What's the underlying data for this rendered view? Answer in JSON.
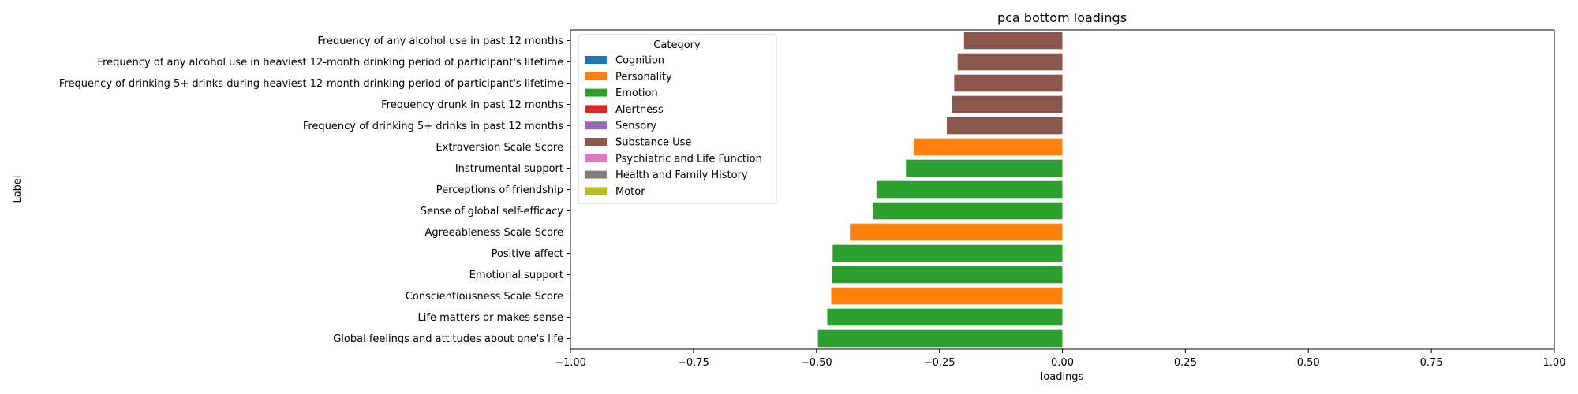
{
  "chart_data": {
    "type": "bar",
    "orientation": "horizontal",
    "title": "pca bottom loadings",
    "xlabel": "loadings",
    "ylabel": "Label",
    "xlim": [
      -1.0,
      1.0
    ],
    "xticks": [
      -1.0,
      -0.75,
      -0.5,
      -0.25,
      0.0,
      0.25,
      0.5,
      0.75,
      1.0
    ],
    "xtick_labels": [
      "−1.00",
      "−0.75",
      "−0.50",
      "−0.25",
      "0.00",
      "0.25",
      "0.50",
      "0.75",
      "1.00"
    ],
    "grid": false,
    "legend": {
      "title": "Category",
      "placement": "top-left",
      "entries": [
        {
          "name": "Cognition",
          "color": "#1f77b4"
        },
        {
          "name": "Personality",
          "color": "#ff7f0e"
        },
        {
          "name": "Emotion",
          "color": "#2ca02c"
        },
        {
          "name": "Alertness",
          "color": "#d62728"
        },
        {
          "name": "Sensory",
          "color": "#9467bd"
        },
        {
          "name": "Substance Use",
          "color": "#8c564b"
        },
        {
          "name": "Psychiatric and Life Function",
          "color": "#e377c2"
        },
        {
          "name": "Health and Family History",
          "color": "#7f7f7f"
        },
        {
          "name": "Motor",
          "color": "#bcbd22"
        }
      ]
    },
    "bars": [
      {
        "label": "Frequency of any alcohol use in past 12 months",
        "value": -0.2,
        "category": "Substance Use"
      },
      {
        "label": "Frequency of any alcohol use in heaviest 12-month drinking period of participant's lifetime",
        "value": -0.213,
        "category": "Substance Use"
      },
      {
        "label": "Frequency of drinking 5+ drinks during heaviest 12-month drinking period of participant's lifetime",
        "value": -0.22,
        "category": "Substance Use"
      },
      {
        "label": "Frequency drunk in past 12 months",
        "value": -0.224,
        "category": "Substance Use"
      },
      {
        "label": "Frequency of drinking 5+ drinks in past 12 months",
        "value": -0.235,
        "category": "Substance Use"
      },
      {
        "label": "Extraversion Scale Score",
        "value": -0.302,
        "category": "Personality"
      },
      {
        "label": "Instrumental support",
        "value": -0.318,
        "category": "Emotion"
      },
      {
        "label": "Perceptions of friendship",
        "value": -0.378,
        "category": "Emotion"
      },
      {
        "label": "Sense of global self-efficacy",
        "value": -0.385,
        "category": "Emotion"
      },
      {
        "label": "Agreeableness Scale Score",
        "value": -0.432,
        "category": "Personality"
      },
      {
        "label": "Positive affect",
        "value": -0.467,
        "category": "Emotion"
      },
      {
        "label": "Emotional support",
        "value": -0.468,
        "category": "Emotion"
      },
      {
        "label": "Conscientiousness Scale Score",
        "value": -0.47,
        "category": "Personality"
      },
      {
        "label": "Life matters or makes sense",
        "value": -0.478,
        "category": "Emotion"
      },
      {
        "label": "Global feelings and attitudes about one's life",
        "value": -0.497,
        "category": "Emotion"
      }
    ]
  }
}
